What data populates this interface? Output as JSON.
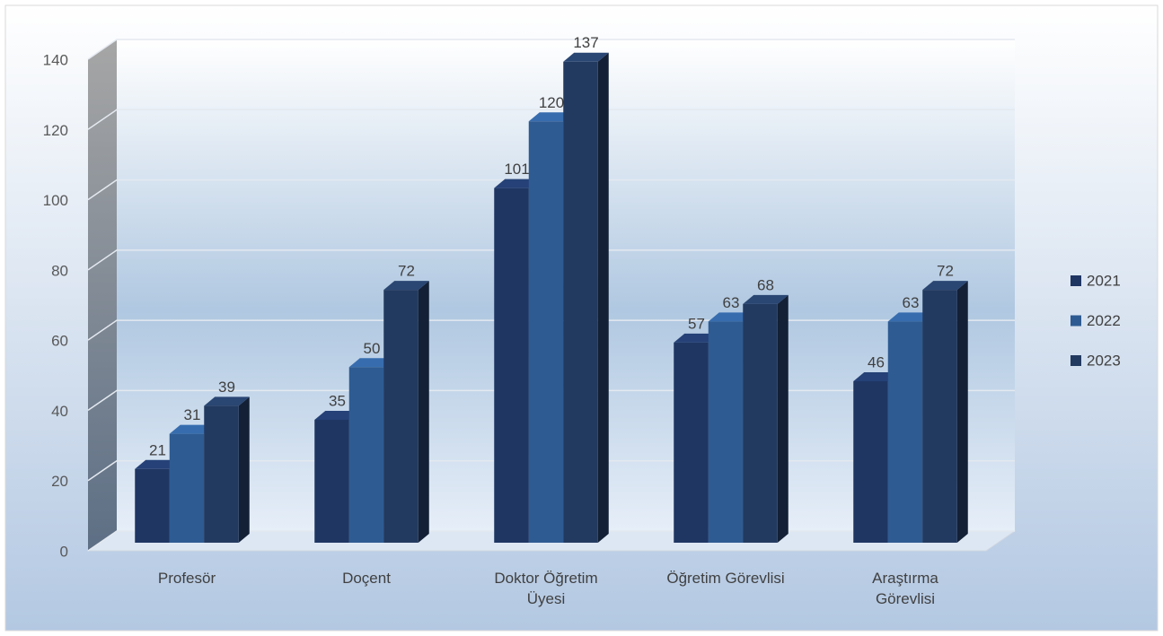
{
  "chart_data": {
    "type": "bar3d",
    "categories": [
      "Profesör",
      "Doçent",
      "Doktor Öğretim Üyesi",
      "Öğretim Görevlisi",
      "Araştırma Görevlisi"
    ],
    "series": [
      {
        "name": "2021",
        "color": "#1f3663",
        "values": [
          21,
          35,
          101,
          57,
          46
        ]
      },
      {
        "name": "2022",
        "color": "#2e5b92",
        "values": [
          31,
          50,
          120,
          63,
          63
        ]
      },
      {
        "name": "2023",
        "color": "#233a60",
        "values": [
          39,
          72,
          137,
          68,
          72
        ]
      }
    ],
    "ylim": [
      0,
      140
    ],
    "yticks": [
      0,
      20,
      40,
      60,
      80,
      100,
      120,
      140
    ],
    "grid": true,
    "legend": "right"
  }
}
